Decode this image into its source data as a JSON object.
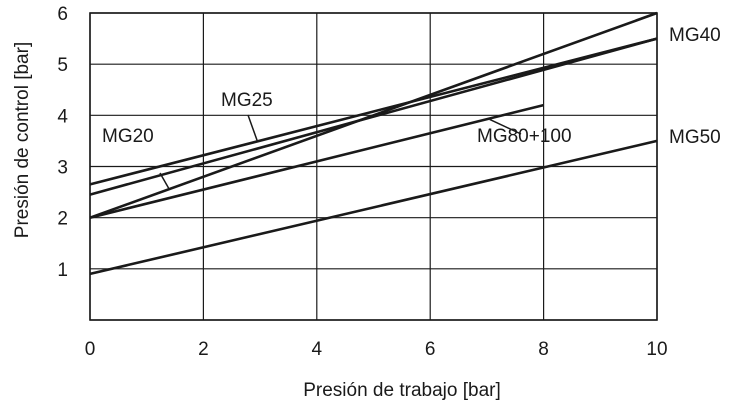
{
  "chart_data": {
    "type": "line",
    "title": "",
    "xlabel": "Presión de trabajo [bar]",
    "ylabel": "Presión de control [bar]",
    "xlim": [
      0,
      10
    ],
    "ylim": [
      0,
      6
    ],
    "xticks": [
      0,
      2,
      4,
      6,
      8,
      10
    ],
    "yticks": [
      1,
      2,
      3,
      4,
      5,
      6
    ],
    "grid": true,
    "legend": "none",
    "series": [
      {
        "name": "MG20",
        "x": [
          0,
          10
        ],
        "y": [
          2.0,
          6.0
        ]
      },
      {
        "name": "MG25",
        "x": [
          0,
          10
        ],
        "y": [
          2.65,
          5.5
        ]
      },
      {
        "name": "MG40",
        "x": [
          0,
          10
        ],
        "y": [
          2.45,
          5.5
        ]
      },
      {
        "name": "MG80+100",
        "x": [
          0,
          8
        ],
        "y": [
          2.0,
          4.2
        ]
      },
      {
        "name": "MG50",
        "x": [
          0,
          10
        ],
        "y": [
          0.9,
          3.5
        ]
      }
    ]
  }
}
